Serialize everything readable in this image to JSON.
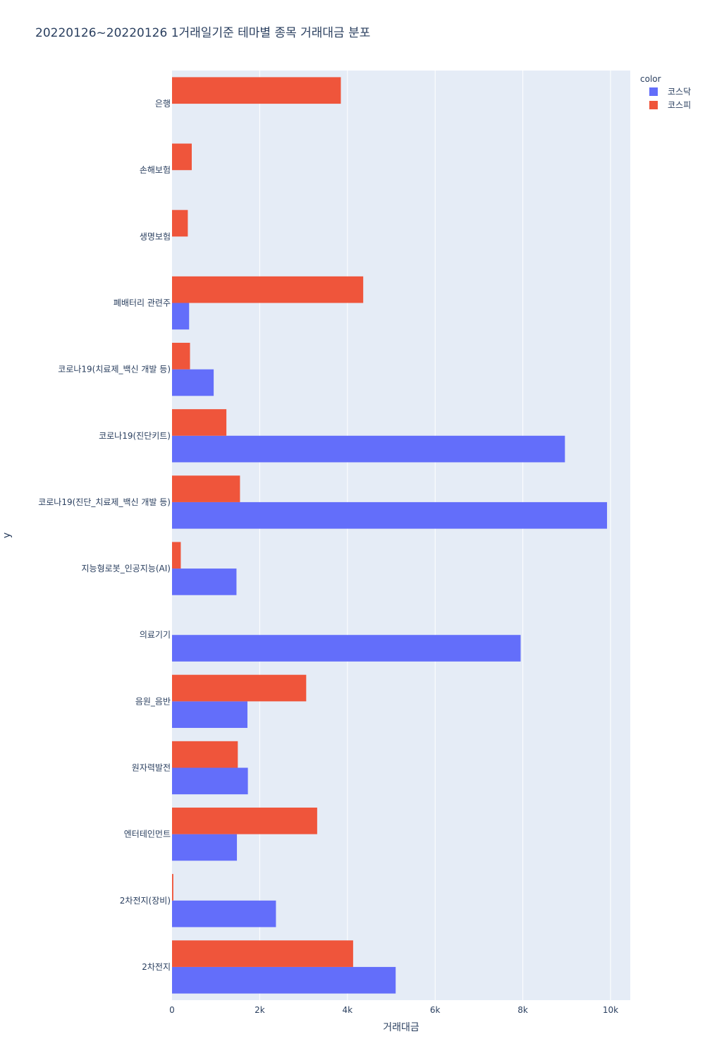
{
  "chart_data": {
    "type": "bar",
    "orientation": "horizontal",
    "barmode": "group",
    "title": "20220126~20220126 1거래일기준 테마별 종목 거래대금 분포",
    "xlabel": "거래대금",
    "ylabel": "y",
    "xlim": [
      0,
      10450
    ],
    "xticks": [
      0,
      2000,
      4000,
      6000,
      8000,
      10000
    ],
    "xtick_labels": [
      "0",
      "2k",
      "4k",
      "6k",
      "8k",
      "10k"
    ],
    "grid": true,
    "legend": {
      "title": "color",
      "position": "top-right"
    },
    "categories": [
      "은행",
      "손해보험",
      "생명보험",
      "폐배터리 관련주",
      "코로나19(치료제_백신 개발 등)",
      "코로나19(진단키트)",
      "코로나19(진단_치료제_백신 개발 등)",
      "지능형로봇_인공지능(AI)",
      "의료기기",
      "음원_음반",
      "원자력발전",
      "엔터테인먼트",
      "2차전지(장비)",
      "2차전지"
    ],
    "series": [
      {
        "name": "코스닥",
        "color": "#636efa",
        "values": [
          0,
          0,
          0,
          390,
          950,
          8960,
          9920,
          1470,
          7950,
          1720,
          1730,
          1480,
          2370,
          5100
        ]
      },
      {
        "name": "코스피",
        "color": "#ef553b",
        "values": [
          3850,
          450,
          360,
          4360,
          410,
          1240,
          1550,
          200,
          0,
          3060,
          1500,
          3310,
          30,
          4130
        ]
      }
    ]
  }
}
